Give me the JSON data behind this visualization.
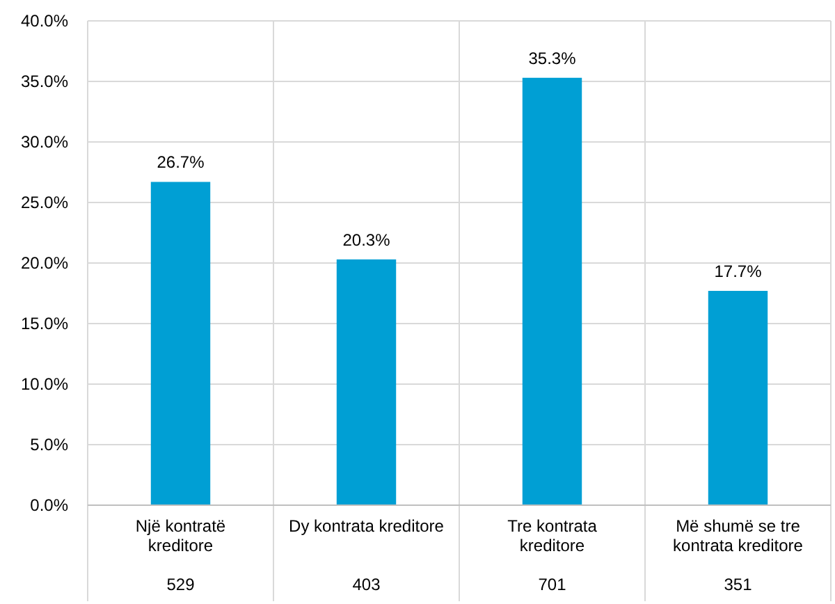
{
  "chart_data": {
    "type": "bar",
    "categories": [
      "Një kontratë kreditore",
      "Dy kontrata kreditore",
      "Tre kontrata kreditore",
      "Më shumë se tre kontrata kreditore"
    ],
    "values": [
      26.7,
      20.3,
      35.3,
      17.7
    ],
    "value_labels": [
      "26.7%",
      "20.3%",
      "35.3%",
      "17.7%"
    ],
    "color": "#009fd4",
    "ylim": [
      0,
      40
    ],
    "yticks": [
      {
        "value": 0,
        "label": "0.0%"
      },
      {
        "value": 5,
        "label": "5.0%"
      },
      {
        "value": 10,
        "label": "10.0%"
      },
      {
        "value": 15,
        "label": "15.0%"
      },
      {
        "value": 20,
        "label": "20.0%"
      },
      {
        "value": 25,
        "label": "25.0%"
      },
      {
        "value": 30,
        "label": "30.0%"
      },
      {
        "value": 35,
        "label": "35.0%"
      },
      {
        "value": 40,
        "label": "40.0%"
      }
    ],
    "grid": true,
    "annotations": [
      "529",
      "403",
      "701",
      "351"
    ]
  }
}
